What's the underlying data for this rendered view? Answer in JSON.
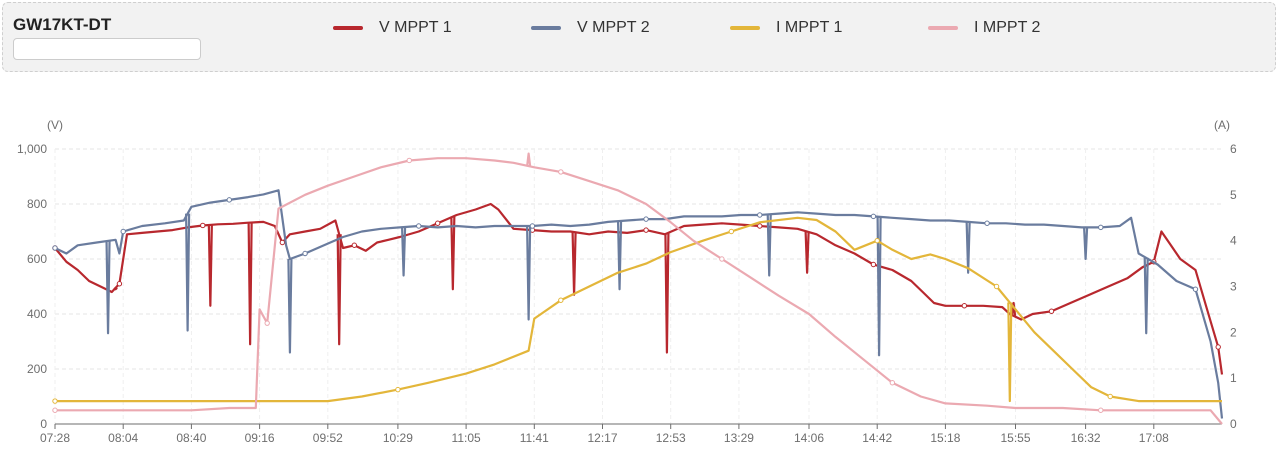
{
  "header": {
    "device_title": "GW17KT-DT",
    "device_input_value": ""
  },
  "legend": [
    {
      "name": "V MPPT 1",
      "color": "#b8282e"
    },
    {
      "name": "V MPPT 2",
      "color": "#6a7c9e"
    },
    {
      "name": "I MPPT 1",
      "color": "#e3b63a"
    },
    {
      "name": "I MPPT 2",
      "color": "#eba9b1"
    }
  ],
  "chart_data": {
    "type": "line",
    "title": "",
    "xlabel": "",
    "ylabel_left": "(V)",
    "ylabel_right": "(A)",
    "ylim_left": [
      0,
      1000
    ],
    "ylim_right": [
      0,
      6
    ],
    "yticks_left": [
      0,
      200,
      400,
      600,
      800,
      1000
    ],
    "ytick_labels_left": [
      "0",
      "200",
      "400",
      "600",
      "800",
      "1,000"
    ],
    "yticks_right": [
      0,
      1,
      2,
      3,
      4,
      5,
      6
    ],
    "ytick_labels_right": [
      "0",
      "1",
      "2",
      "3",
      "4",
      "5",
      "6"
    ],
    "x_tick_labels": [
      "07:28",
      "08:04",
      "08:40",
      "09:16",
      "09:52",
      "10:29",
      "11:05",
      "11:41",
      "12:17",
      "12:53",
      "13:29",
      "14:06",
      "14:42",
      "15:18",
      "15:55",
      "16:32",
      "17:08"
    ],
    "x_range": [
      "07:28",
      "17:44"
    ],
    "grid": true,
    "legend_position": "top",
    "series": [
      {
        "name": "V MPPT 1",
        "axis": "left",
        "color": "#b8282e",
        "points": [
          [
            "07:28",
            640
          ],
          [
            "07:34",
            590
          ],
          [
            "07:40",
            560
          ],
          [
            "07:46",
            520
          ],
          [
            "07:52",
            500
          ],
          [
            "07:58",
            480
          ],
          [
            "08:02",
            510
          ],
          [
            "08:06",
            690
          ],
          [
            "08:14",
            695
          ],
          [
            "08:22",
            700
          ],
          [
            "08:30",
            705
          ],
          [
            "08:38",
            715
          ],
          [
            "08:46",
            722
          ],
          [
            "08:54",
            726
          ],
          [
            "09:02",
            728
          ],
          [
            "09:10",
            732
          ],
          [
            "09:18",
            735
          ],
          [
            "09:24",
            720
          ],
          [
            "09:28",
            660
          ],
          [
            "09:32",
            690
          ],
          [
            "09:40",
            700
          ],
          [
            "09:48",
            710
          ],
          [
            "09:56",
            740
          ],
          [
            "10:00",
            640
          ],
          [
            "10:06",
            650
          ],
          [
            "10:12",
            630
          ],
          [
            "10:18",
            660
          ],
          [
            "10:24",
            670
          ],
          [
            "10:30",
            680
          ],
          [
            "10:40",
            700
          ],
          [
            "10:50",
            730
          ],
          [
            "11:00",
            760
          ],
          [
            "11:10",
            780
          ],
          [
            "11:18",
            800
          ],
          [
            "11:22",
            780
          ],
          [
            "11:30",
            710
          ],
          [
            "11:40",
            705
          ],
          [
            "11:50",
            700
          ],
          [
            "12:00",
            700
          ],
          [
            "12:10",
            690
          ],
          [
            "12:20",
            700
          ],
          [
            "12:30",
            695
          ],
          [
            "12:40",
            705
          ],
          [
            "12:50",
            690
          ],
          [
            "13:00",
            720
          ],
          [
            "13:10",
            725
          ],
          [
            "13:20",
            730
          ],
          [
            "13:30",
            725
          ],
          [
            "13:40",
            720
          ],
          [
            "13:50",
            715
          ],
          [
            "14:00",
            710
          ],
          [
            "14:10",
            690
          ],
          [
            "14:20",
            650
          ],
          [
            "14:30",
            620
          ],
          [
            "14:40",
            580
          ],
          [
            "14:50",
            560
          ],
          [
            "15:00",
            520
          ],
          [
            "15:06",
            480
          ],
          [
            "15:12",
            440
          ],
          [
            "15:18",
            430
          ],
          [
            "15:28",
            430
          ],
          [
            "15:38",
            430
          ],
          [
            "15:48",
            425
          ],
          [
            "15:52",
            400
          ],
          [
            "15:58",
            380
          ],
          [
            "16:04",
            400
          ],
          [
            "16:14",
            410
          ],
          [
            "16:24",
            440
          ],
          [
            "16:34",
            470
          ],
          [
            "16:44",
            500
          ],
          [
            "16:54",
            530
          ],
          [
            "17:02",
            570
          ],
          [
            "17:08",
            590
          ],
          [
            "17:12",
            700
          ],
          [
            "17:16",
            660
          ],
          [
            "17:22",
            600
          ],
          [
            "17:30",
            560
          ],
          [
            "17:36",
            420
          ],
          [
            "17:42",
            280
          ],
          [
            "17:44",
            180
          ]
        ],
        "spikes": [
          [
            "08:00",
            490
          ],
          [
            "08:50",
            430
          ],
          [
            "09:11",
            290
          ],
          [
            "09:58",
            290
          ],
          [
            "10:58",
            490
          ],
          [
            "12:02",
            470
          ],
          [
            "12:51",
            260
          ],
          [
            "14:05",
            550
          ],
          [
            "15:54",
            440
          ]
        ]
      },
      {
        "name": "V MPPT 2",
        "axis": "left",
        "color": "#6a7c9e",
        "points": [
          [
            "07:28",
            640
          ],
          [
            "07:34",
            620
          ],
          [
            "07:40",
            650
          ],
          [
            "07:50",
            660
          ],
          [
            "08:00",
            670
          ],
          [
            "08:02",
            620
          ],
          [
            "08:04",
            700
          ],
          [
            "08:14",
            720
          ],
          [
            "08:26",
            730
          ],
          [
            "08:36",
            740
          ],
          [
            "08:40",
            790
          ],
          [
            "08:50",
            805
          ],
          [
            "09:00",
            815
          ],
          [
            "09:10",
            825
          ],
          [
            "09:18",
            835
          ],
          [
            "09:26",
            850
          ],
          [
            "09:30",
            650
          ],
          [
            "09:32",
            600
          ],
          [
            "09:40",
            620
          ],
          [
            "09:50",
            650
          ],
          [
            "10:00",
            680
          ],
          [
            "10:10",
            700
          ],
          [
            "10:20",
            710
          ],
          [
            "10:30",
            715
          ],
          [
            "10:40",
            720
          ],
          [
            "10:50",
            715
          ],
          [
            "11:00",
            720
          ],
          [
            "11:10",
            715
          ],
          [
            "11:20",
            720
          ],
          [
            "11:30",
            720
          ],
          [
            "11:40",
            720
          ],
          [
            "11:50",
            725
          ],
          [
            "12:00",
            720
          ],
          [
            "12:10",
            725
          ],
          [
            "12:20",
            735
          ],
          [
            "12:30",
            740
          ],
          [
            "12:40",
            745
          ],
          [
            "12:50",
            745
          ],
          [
            "13:00",
            755
          ],
          [
            "13:10",
            755
          ],
          [
            "13:20",
            755
          ],
          [
            "13:30",
            760
          ],
          [
            "13:40",
            760
          ],
          [
            "13:50",
            765
          ],
          [
            "14:00",
            770
          ],
          [
            "14:10",
            765
          ],
          [
            "14:20",
            760
          ],
          [
            "14:30",
            760
          ],
          [
            "14:40",
            755
          ],
          [
            "14:50",
            750
          ],
          [
            "15:00",
            745
          ],
          [
            "15:10",
            740
          ],
          [
            "15:20",
            740
          ],
          [
            "15:30",
            735
          ],
          [
            "15:40",
            730
          ],
          [
            "15:50",
            730
          ],
          [
            "16:00",
            725
          ],
          [
            "16:10",
            725
          ],
          [
            "16:20",
            720
          ],
          [
            "16:30",
            715
          ],
          [
            "16:40",
            715
          ],
          [
            "16:50",
            720
          ],
          [
            "16:56",
            750
          ],
          [
            "17:00",
            620
          ],
          [
            "17:10",
            580
          ],
          [
            "17:20",
            520
          ],
          [
            "17:30",
            490
          ],
          [
            "17:38",
            300
          ],
          [
            "17:42",
            150
          ],
          [
            "17:44",
            20
          ]
        ],
        "spikes": [
          [
            "07:56",
            330
          ],
          [
            "08:38",
            340
          ],
          [
            "09:32",
            260
          ],
          [
            "10:32",
            540
          ],
          [
            "11:38",
            380
          ],
          [
            "12:26",
            490
          ],
          [
            "13:45",
            540
          ],
          [
            "14:43",
            250
          ],
          [
            "15:30",
            550
          ],
          [
            "16:32",
            600
          ],
          [
            "17:04",
            330
          ]
        ]
      },
      {
        "name": "I MPPT 1",
        "axis": "right",
        "color": "#e3b63a",
        "points": [
          [
            "07:28",
            0.5
          ],
          [
            "08:00",
            0.5
          ],
          [
            "08:40",
            0.5
          ],
          [
            "09:16",
            0.5
          ],
          [
            "09:52",
            0.5
          ],
          [
            "10:10",
            0.6
          ],
          [
            "10:29",
            0.75
          ],
          [
            "10:45",
            0.9
          ],
          [
            "11:05",
            1.1
          ],
          [
            "11:20",
            1.3
          ],
          [
            "11:38",
            1.6
          ],
          [
            "11:41",
            2.3
          ],
          [
            "11:55",
            2.7
          ],
          [
            "12:10",
            3.0
          ],
          [
            "12:25",
            3.3
          ],
          [
            "12:40",
            3.5
          ],
          [
            "12:53",
            3.75
          ],
          [
            "13:10",
            4.0
          ],
          [
            "13:25",
            4.2
          ],
          [
            "13:40",
            4.4
          ],
          [
            "14:00",
            4.5
          ],
          [
            "14:10",
            4.45
          ],
          [
            "14:20",
            4.2
          ],
          [
            "14:30",
            3.8
          ],
          [
            "14:42",
            4.0
          ],
          [
            "14:50",
            3.8
          ],
          [
            "15:00",
            3.6
          ],
          [
            "15:10",
            3.7
          ],
          [
            "15:18",
            3.6
          ],
          [
            "15:30",
            3.4
          ],
          [
            "15:45",
            3.0
          ],
          [
            "15:55",
            2.5
          ],
          [
            "16:05",
            2.0
          ],
          [
            "16:15",
            1.6
          ],
          [
            "16:25",
            1.2
          ],
          [
            "16:35",
            0.8
          ],
          [
            "16:45",
            0.6
          ],
          [
            "17:00",
            0.5
          ],
          [
            "17:20",
            0.5
          ],
          [
            "17:44",
            0.5
          ]
        ],
        "spikes": [
          [
            "15:52",
            0.5
          ]
        ]
      },
      {
        "name": "I MPPT 2",
        "axis": "right",
        "color": "#eba9b1",
        "points": [
          [
            "07:28",
            0.3
          ],
          [
            "08:04",
            0.3
          ],
          [
            "08:40",
            0.3
          ],
          [
            "09:00",
            0.35
          ],
          [
            "09:14",
            0.35
          ],
          [
            "09:16",
            2.5
          ],
          [
            "09:20",
            2.2
          ],
          [
            "09:26",
            4.7
          ],
          [
            "09:40",
            5.0
          ],
          [
            "09:52",
            5.2
          ],
          [
            "10:06",
            5.4
          ],
          [
            "10:20",
            5.6
          ],
          [
            "10:35",
            5.75
          ],
          [
            "10:50",
            5.8
          ],
          [
            "11:05",
            5.8
          ],
          [
            "11:20",
            5.75
          ],
          [
            "11:30",
            5.7
          ],
          [
            "11:41",
            5.6
          ],
          [
            "11:55",
            5.5
          ],
          [
            "12:10",
            5.3
          ],
          [
            "12:25",
            5.1
          ],
          [
            "12:40",
            4.8
          ],
          [
            "12:53",
            4.4
          ],
          [
            "13:05",
            4.0
          ],
          [
            "13:20",
            3.6
          ],
          [
            "13:35",
            3.2
          ],
          [
            "13:50",
            2.8
          ],
          [
            "14:06",
            2.4
          ],
          [
            "14:20",
            1.9
          ],
          [
            "14:35",
            1.4
          ],
          [
            "14:50",
            0.9
          ],
          [
            "15:05",
            0.6
          ],
          [
            "15:18",
            0.45
          ],
          [
            "15:40",
            0.4
          ],
          [
            "15:55",
            0.35
          ],
          [
            "16:20",
            0.35
          ],
          [
            "16:40",
            0.3
          ],
          [
            "17:08",
            0.3
          ],
          [
            "17:38",
            0.3
          ],
          [
            "17:44",
            0.0
          ]
        ],
        "spikes": [
          [
            "11:38",
            5.9
          ]
        ]
      }
    ]
  }
}
